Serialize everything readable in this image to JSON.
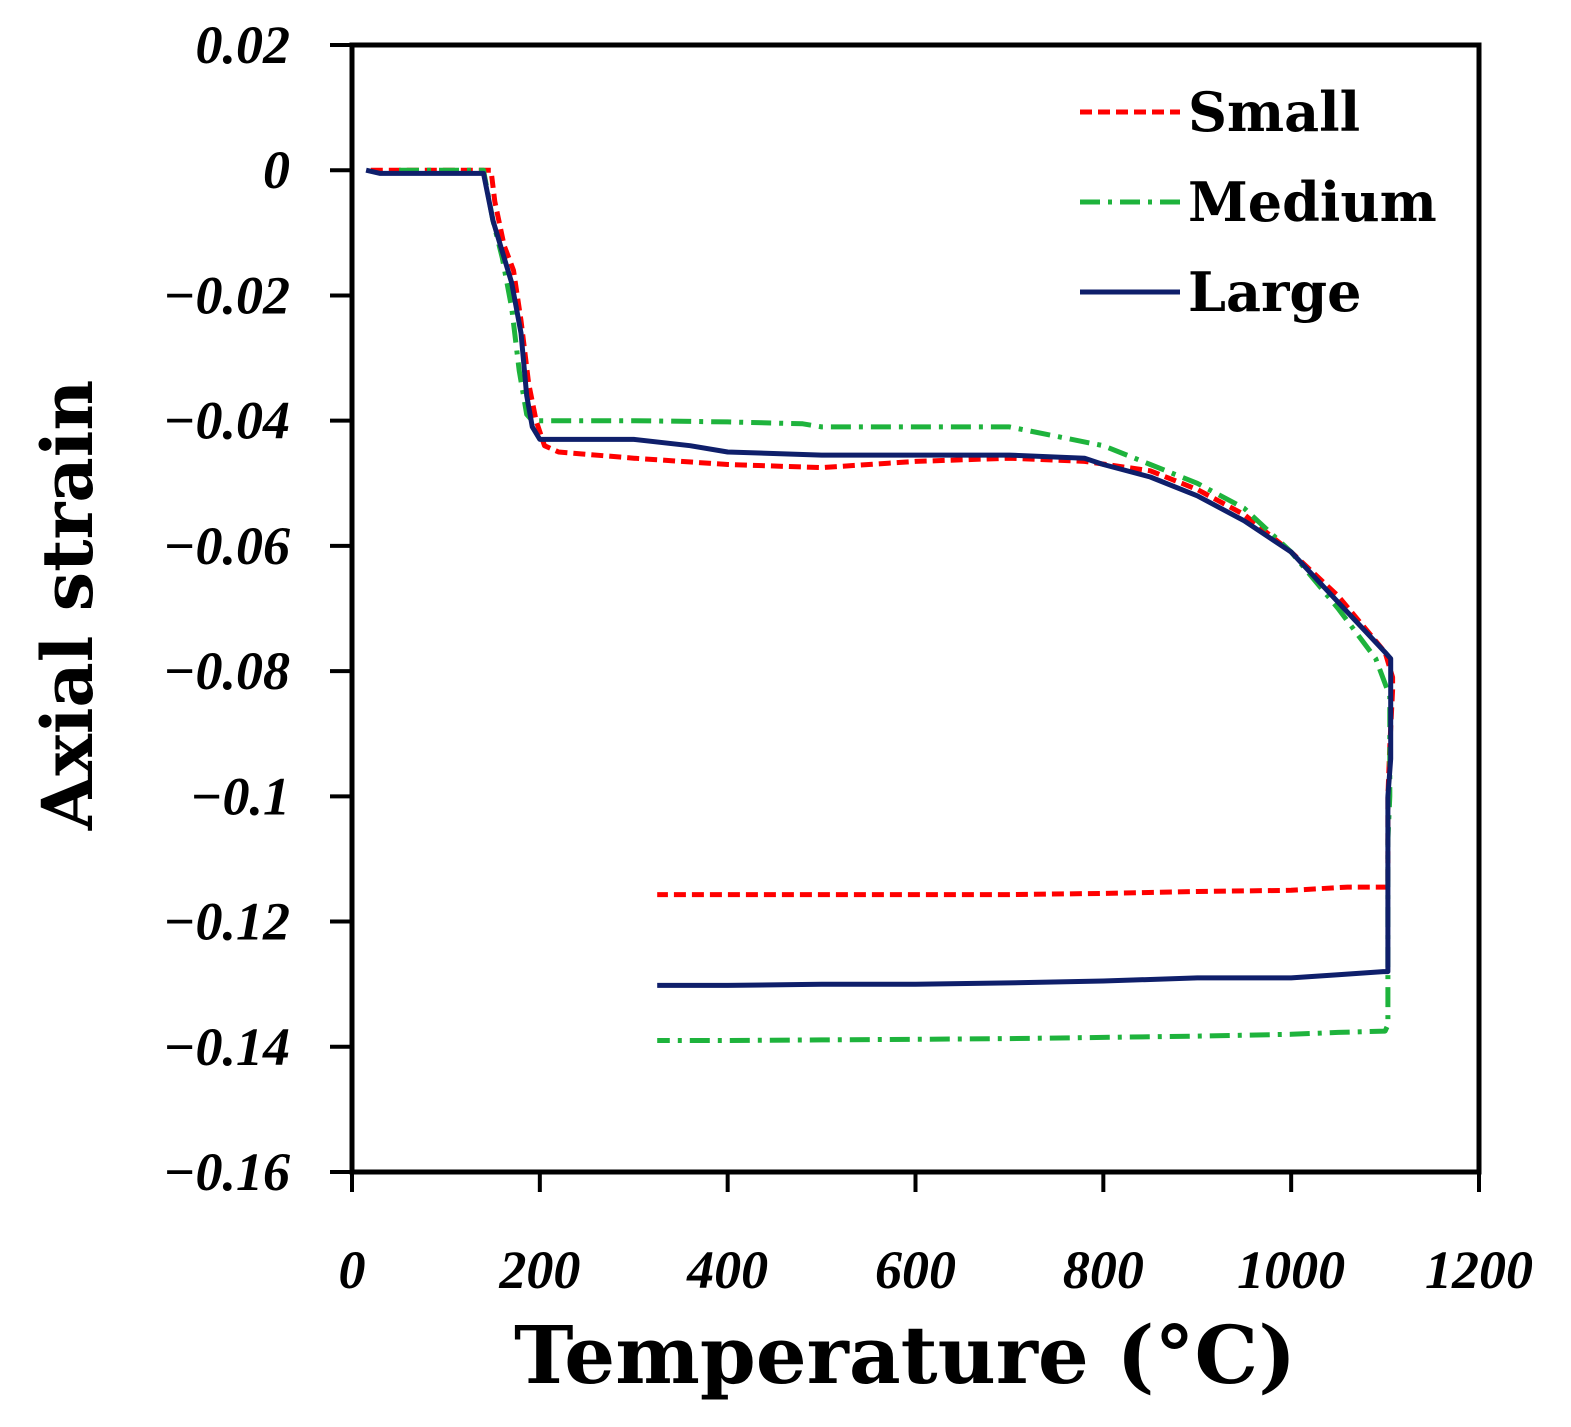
{
  "chart_data": {
    "type": "line",
    "xlabel": "Temperature (°C)",
    "ylabel": "Axial strain",
    "xlim": [
      0,
      1200
    ],
    "ylim": [
      -0.16,
      0.02
    ],
    "x_ticks": [
      0,
      200,
      400,
      600,
      800,
      1000,
      1200
    ],
    "y_ticks": [
      0.02,
      0,
      -0.02,
      -0.04,
      -0.06,
      -0.08,
      -0.1,
      -0.12,
      -0.14,
      -0.16
    ],
    "x_tick_labels": [
      "0",
      "200",
      "400",
      "600",
      "800",
      "1000",
      "1200"
    ],
    "y_tick_labels": [
      "0.02",
      "0",
      "−0.02",
      "−0.04",
      "−0.06",
      "−0.08",
      "−0.1",
      "−0.12",
      "−0.14",
      "−0.16"
    ],
    "grid": false,
    "legend_position": "top-right",
    "series": [
      {
        "name": "Small",
        "color": "#ff0000",
        "dash": "dashed",
        "x": [
          20,
          100,
          148,
          152,
          162,
          172,
          180,
          188,
          196,
          205,
          220,
          300,
          400,
          500,
          600,
          700,
          780,
          850,
          900,
          950,
          1000,
          1050,
          1100,
          1108,
          1108,
          1105,
          1103,
          1103,
          1060,
          1000,
          900,
          800,
          700,
          600,
          500,
          400,
          325
        ],
        "y": [
          0,
          0,
          0,
          -0.005,
          -0.012,
          -0.016,
          -0.024,
          -0.034,
          -0.04,
          -0.044,
          -0.045,
          -0.046,
          -0.047,
          -0.0475,
          -0.0465,
          -0.046,
          -0.0465,
          -0.048,
          -0.051,
          -0.055,
          -0.061,
          -0.068,
          -0.077,
          -0.081,
          -0.083,
          -0.092,
          -0.1,
          -0.1145,
          -0.1145,
          -0.115,
          -0.1152,
          -0.1155,
          -0.1157,
          -0.1157,
          -0.1157,
          -0.1157,
          -0.1157
        ]
      },
      {
        "name": "Medium",
        "color": "#1eb33c",
        "dash": "dashdot",
        "x": [
          50,
          100,
          140,
          150,
          160,
          170,
          178,
          186,
          192,
          200,
          300,
          400,
          480,
          500,
          600,
          700,
          750,
          800,
          850,
          900,
          950,
          1000,
          1050,
          1090,
          1105,
          1105,
          1103,
          1103,
          1100,
          1050,
          1000,
          900,
          800,
          700,
          600,
          500,
          400,
          325
        ],
        "y": [
          0,
          0,
          0,
          -0.008,
          -0.014,
          -0.022,
          -0.032,
          -0.039,
          -0.04,
          -0.04,
          -0.04,
          -0.0402,
          -0.0405,
          -0.041,
          -0.041,
          -0.041,
          -0.0425,
          -0.044,
          -0.047,
          -0.05,
          -0.054,
          -0.061,
          -0.07,
          -0.078,
          -0.084,
          -0.1,
          -0.107,
          -0.1365,
          -0.1375,
          -0.1377,
          -0.138,
          -0.1383,
          -0.1385,
          -0.1387,
          -0.1388,
          -0.1389,
          -0.139,
          -0.139
        ]
      },
      {
        "name": "Large",
        "color": "#0f1f6b",
        "dash": "solid",
        "x": [
          15,
          30,
          140,
          150,
          160,
          170,
          180,
          186,
          192,
          200,
          300,
          360,
          400,
          500,
          600,
          700,
          780,
          800,
          850,
          900,
          950,
          1000,
          1050,
          1100,
          1106,
          1106,
          1103,
          1103,
          1098,
          1050,
          1000,
          900,
          800,
          700,
          600,
          500,
          400,
          325
        ],
        "y": [
          0,
          -0.0005,
          -0.0005,
          -0.008,
          -0.013,
          -0.018,
          -0.026,
          -0.036,
          -0.041,
          -0.043,
          -0.043,
          -0.044,
          -0.045,
          -0.0455,
          -0.0455,
          -0.0455,
          -0.046,
          -0.047,
          -0.049,
          -0.052,
          -0.056,
          -0.061,
          -0.069,
          -0.077,
          -0.078,
          -0.094,
          -0.1,
          -0.128,
          -0.128,
          -0.1285,
          -0.129,
          -0.129,
          -0.1295,
          -0.1298,
          -0.13,
          -0.13,
          -0.1302,
          -0.1302
        ]
      }
    ]
  }
}
